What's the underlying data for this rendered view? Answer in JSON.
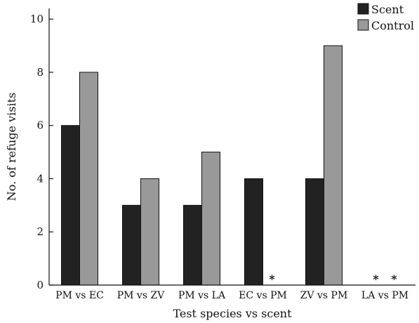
{
  "chart_data": {
    "type": "bar",
    "title": "",
    "xlabel": "Test species vs scent",
    "ylabel": "No. of refuge visits",
    "categories": [
      "PM vs EC",
      "PM vs ZV",
      "PM vs LA",
      "EC vs PM",
      "ZV vs PM",
      "LA vs PM"
    ],
    "series": [
      {
        "name": "Scent",
        "color": "#222222",
        "values": [
          6,
          3,
          3,
          4,
          4,
          0
        ]
      },
      {
        "name": "Control",
        "color": "#999999",
        "values": [
          8,
          4,
          5,
          0,
          9,
          0
        ]
      }
    ],
    "ylim": [
      0,
      10.4
    ],
    "yticks": [
      0,
      2,
      4,
      6,
      8,
      10
    ],
    "grid": false,
    "legend": "top-right",
    "annotations": [
      {
        "category": "EC vs PM",
        "series": "Control",
        "text": "*"
      },
      {
        "category": "LA vs PM",
        "series": "Scent",
        "text": "*"
      },
      {
        "category": "LA vs PM",
        "series": "Control",
        "text": "*"
      }
    ]
  }
}
